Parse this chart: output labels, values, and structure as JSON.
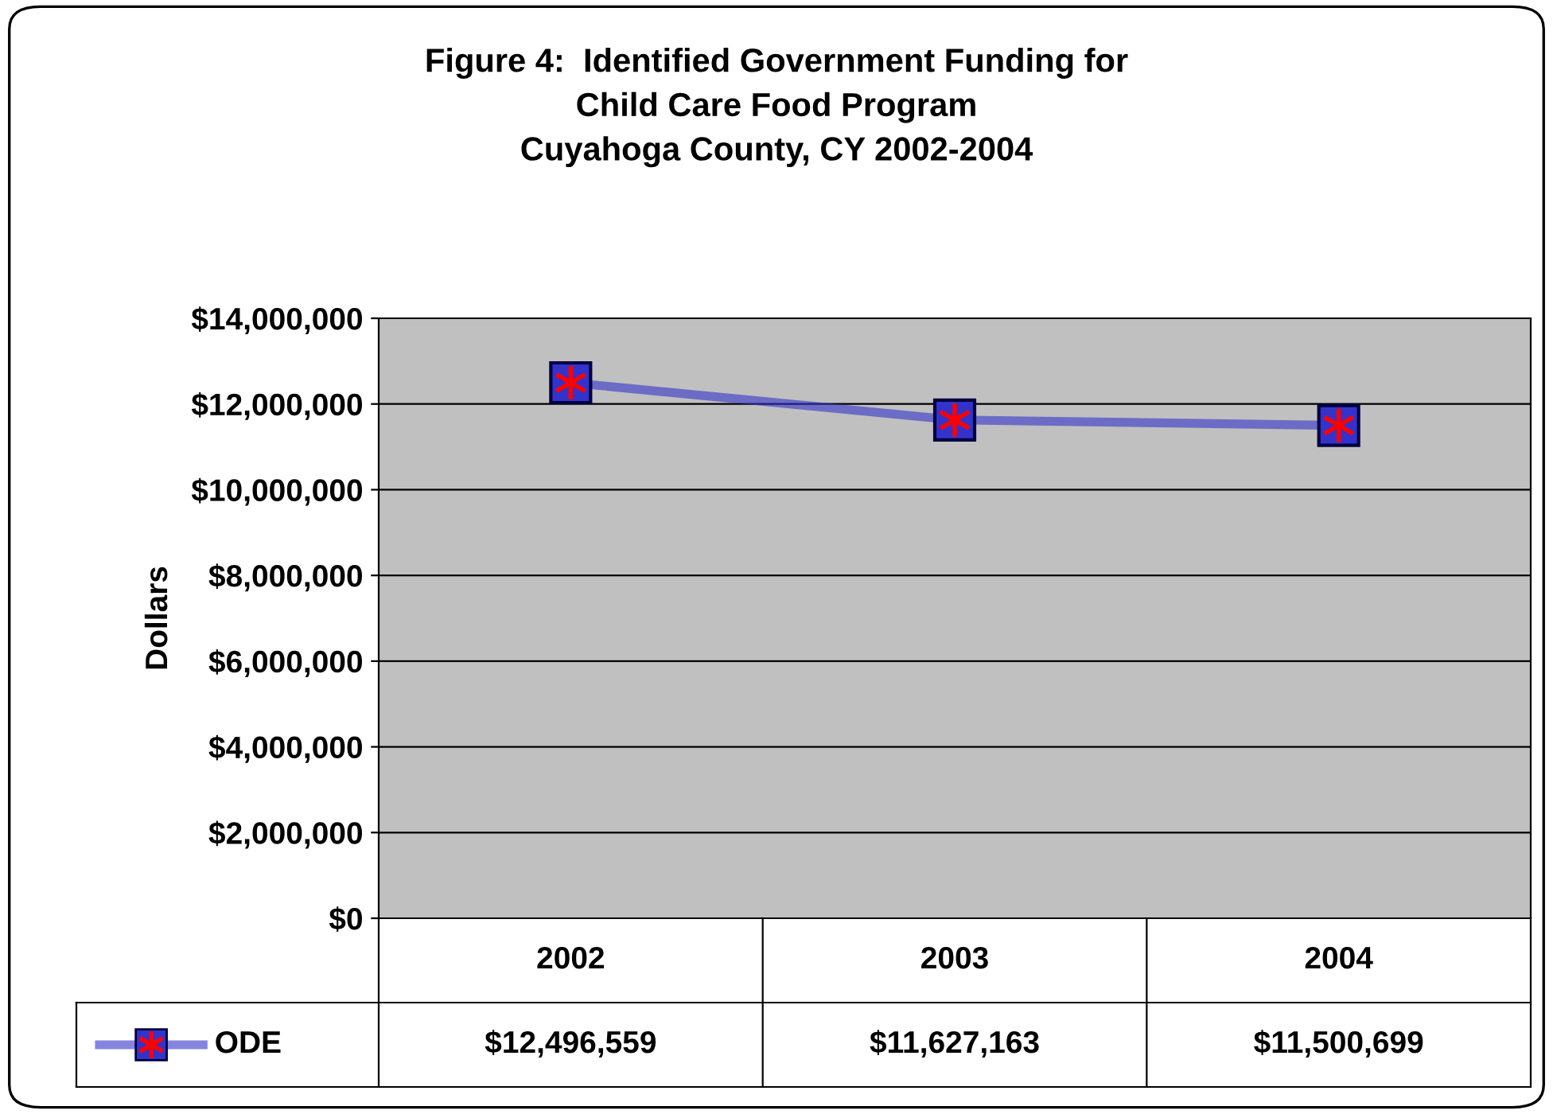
{
  "chart_data": {
    "type": "line",
    "title": "Figure 4:  Identified Government Funding for\nChild Care Food Program\nCuyahoga County, CY 2002-2004",
    "ylabel": "Dollars",
    "categories": [
      "2002",
      "2003",
      "2004"
    ],
    "series": [
      {
        "name": "ODE",
        "color": "#3333cc",
        "values": [
          12496559,
          11627163,
          11500699
        ],
        "value_labels": [
          "$12,496,559",
          "$11,627,163",
          "$11,500,699"
        ]
      }
    ],
    "ylim": [
      0,
      14000000
    ],
    "yticks": [
      {
        "value": 0,
        "label": "$0"
      },
      {
        "value": 2000000,
        "label": "$2,000,000"
      },
      {
        "value": 4000000,
        "label": "$4,000,000"
      },
      {
        "value": 6000000,
        "label": "$6,000,000"
      },
      {
        "value": 8000000,
        "label": "$8,000,000"
      },
      {
        "value": 10000000,
        "label": "$10,000,000"
      },
      {
        "value": 12000000,
        "label": "$12,000,000"
      },
      {
        "value": 14000000,
        "label": "$14,000,000"
      }
    ],
    "grid": "y",
    "marker": "square",
    "line_style": "solid",
    "legend": "bottom left"
  }
}
